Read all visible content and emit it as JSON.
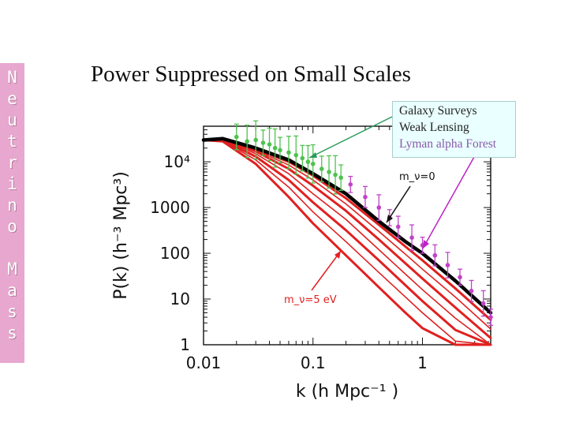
{
  "sidebar": {
    "letters": [
      "N",
      "e",
      "u",
      "t",
      "r",
      "i",
      "n",
      "o",
      " ",
      "M",
      "a",
      "s",
      "s"
    ]
  },
  "header": {
    "title": "Power Suppressed on Small Scales"
  },
  "legend": {
    "items": [
      {
        "label": "Galaxy Surveys",
        "color": "#222222"
      },
      {
        "label": "Weak Lensing",
        "color": "#222222"
      },
      {
        "label": "Lyman alpha Forest",
        "color": "#8a5aa8"
      }
    ]
  },
  "chart_data": {
    "type": "line",
    "xlabel": "k (h Mpc⁻¹ )",
    "ylabel": "P(k) (h⁻³ Mpc³)",
    "x_scale": "log",
    "y_scale": "log",
    "xlim": [
      0.01,
      4.2
    ],
    "ylim": [
      1,
      60000
    ],
    "x_ticks": [
      "0.01",
      "0.1",
      "1"
    ],
    "y_ticks": [
      "1",
      "10",
      "100",
      "1000",
      "10⁴"
    ],
    "annotations": [
      {
        "text": "m_ν=0",
        "color": "#111111"
      },
      {
        "text": "m_ν=5 eV",
        "color": "#e02020"
      }
    ],
    "series": [
      {
        "color": "#000000",
        "points": [
          [
            0.01,
            30000
          ],
          [
            0.015,
            32000
          ],
          [
            0.03,
            20000
          ],
          [
            0.06,
            11000
          ],
          [
            0.1,
            5500
          ],
          [
            0.2,
            2000
          ],
          [
            0.4,
            500
          ],
          [
            0.7,
            180
          ],
          [
            1,
            100
          ],
          [
            2,
            25
          ],
          [
            4.2,
            5
          ]
        ]
      },
      {
        "color": "#e02020",
        "points": [
          [
            0.01,
            30000
          ],
          [
            0.015,
            32000
          ],
          [
            0.03,
            19000
          ],
          [
            0.06,
            10000
          ],
          [
            0.1,
            5000
          ],
          [
            0.2,
            1600
          ],
          [
            0.4,
            420
          ],
          [
            0.7,
            140
          ],
          [
            1,
            70
          ],
          [
            2,
            17
          ],
          [
            4.2,
            3.5
          ]
        ]
      },
      {
        "color": "#e02020",
        "points": [
          [
            0.01,
            30000
          ],
          [
            0.015,
            32000
          ],
          [
            0.03,
            18000
          ],
          [
            0.06,
            8500
          ],
          [
            0.1,
            4000
          ],
          [
            0.2,
            1200
          ],
          [
            0.4,
            300
          ],
          [
            0.7,
            95
          ],
          [
            1,
            45
          ],
          [
            2,
            11
          ],
          [
            4.2,
            2.2
          ]
        ]
      },
      {
        "color": "#e02020",
        "points": [
          [
            0.01,
            30000
          ],
          [
            0.015,
            32000
          ],
          [
            0.03,
            17000
          ],
          [
            0.06,
            7000
          ],
          [
            0.1,
            3000
          ],
          [
            0.2,
            850
          ],
          [
            0.4,
            200
          ],
          [
            0.7,
            60
          ],
          [
            1,
            28
          ],
          [
            2,
            6.5
          ],
          [
            4.2,
            1.4
          ]
        ]
      },
      {
        "color": "#e02020",
        "points": [
          [
            0.01,
            30000
          ],
          [
            0.015,
            31000
          ],
          [
            0.03,
            15000
          ],
          [
            0.06,
            5500
          ],
          [
            0.1,
            2000
          ],
          [
            0.2,
            550
          ],
          [
            0.4,
            120
          ],
          [
            0.7,
            35
          ],
          [
            1,
            16
          ],
          [
            2,
            3.8
          ],
          [
            4.2,
            1
          ]
        ]
      },
      {
        "color": "#e02020",
        "points": [
          [
            0.01,
            30000
          ],
          [
            0.015,
            30000
          ],
          [
            0.03,
            13000
          ],
          [
            0.06,
            4000
          ],
          [
            0.1,
            1300
          ],
          [
            0.2,
            320
          ],
          [
            0.4,
            70
          ],
          [
            0.7,
            20
          ],
          [
            1,
            9
          ],
          [
            2,
            2.1
          ],
          [
            4.2,
            1
          ]
        ]
      },
      {
        "color": "#e02020",
        "points": [
          [
            0.01,
            30000
          ],
          [
            0.015,
            29000
          ],
          [
            0.03,
            11000
          ],
          [
            0.06,
            2800
          ],
          [
            0.1,
            800
          ],
          [
            0.2,
            180
          ],
          [
            0.4,
            38
          ],
          [
            0.7,
            11
          ],
          [
            1,
            5
          ],
          [
            2,
            1.2
          ],
          [
            4.2,
            1
          ]
        ]
      },
      {
        "color": "#e02020",
        "points": [
          [
            0.01,
            30000
          ],
          [
            0.015,
            28000
          ],
          [
            0.03,
            9000
          ],
          [
            0.06,
            1700
          ],
          [
            0.1,
            450
          ],
          [
            0.2,
            90
          ],
          [
            0.4,
            18
          ],
          [
            0.7,
            5
          ],
          [
            1,
            2.3
          ],
          [
            2,
            1
          ],
          [
            4.2,
            1
          ]
        ]
      }
    ],
    "data_points": {
      "galaxy_surveys": {
        "color": "#4fc24f",
        "points": [
          [
            0.02,
            35000
          ],
          [
            0.025,
            28000
          ],
          [
            0.03,
            30000
          ],
          [
            0.035,
            26000
          ],
          [
            0.04,
            24000
          ],
          [
            0.045,
            20000
          ],
          [
            0.05,
            18000
          ],
          [
            0.06,
            16000
          ],
          [
            0.07,
            14000
          ],
          [
            0.08,
            12000
          ],
          [
            0.09,
            10000
          ],
          [
            0.1,
            9000
          ],
          [
            0.12,
            7000
          ],
          [
            0.14,
            6000
          ],
          [
            0.16,
            5200
          ],
          [
            0.18,
            4500
          ]
        ]
      },
      "lyman_alpha": {
        "color": "#c043c8",
        "points": [
          [
            0.22,
            3200
          ],
          [
            0.3,
            1700
          ],
          [
            0.4,
            1000
          ],
          [
            0.5,
            600
          ],
          [
            0.6,
            380
          ],
          [
            0.8,
            220
          ],
          [
            1.0,
            150
          ],
          [
            1.3,
            90
          ],
          [
            1.7,
            55
          ],
          [
            2.2,
            30
          ],
          [
            2.8,
            15
          ],
          [
            3.6,
            8
          ],
          [
            4.2,
            4
          ]
        ]
      }
    }
  }
}
